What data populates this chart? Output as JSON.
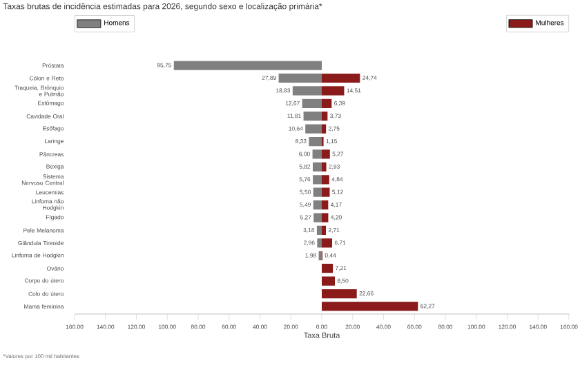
{
  "chart_data": [
    {
      "type": "bar",
      "orientation": "horizontal",
      "title": "Taxas brutas de incidência estimadas para 2026, segundo sexo e localização primária*",
      "annotations": [
        "*Valores por 100 mil habitantes"
      ],
      "categories": [
        "Próstata",
        "Cólon e Reto",
        "Traqueia, Brônquio e Pulmão",
        "Estômago",
        "Cavidade Oral",
        "Esôfago",
        "Laringe",
        "Pâncreas",
        "Bexiga",
        "Sistema Nervoso Central",
        "Leucemias",
        "Linfoma não Hodgkin",
        "Fígado",
        "Pele Melanoma",
        "Glândula Tireoide",
        "Linfoma de Hodgkin",
        "Ovário",
        "Corpo do útero",
        "Colo do útero",
        "Mama feminina"
      ],
      "series": [
        {
          "name": "Homens",
          "color": "#808080",
          "values": [
            95.75,
            27.89,
            18.83,
            12.67,
            11.81,
            10.64,
            8.33,
            6.0,
            5.82,
            5.76,
            5.5,
            5.49,
            5.27,
            3.18,
            2.96,
            1.98,
            null,
            null,
            null,
            null
          ],
          "value_labels": [
            "95,75",
            "27,89",
            "18,83",
            "12,67",
            "11,81",
            "10,64",
            "8,33",
            "6,00",
            "5,82",
            "5,76",
            "5,50",
            "5,49",
            "5,27",
            "3,18",
            "2,96",
            "1,98",
            null,
            null,
            null,
            null
          ]
        }
      ],
      "xlim": [
        160,
        0
      ],
      "xticks": [
        {
          "value": 160,
          "label": "160.00"
        },
        {
          "value": 140,
          "label": "140.00"
        },
        {
          "value": 120,
          "label": "120.00"
        },
        {
          "value": 100,
          "label": "100.00"
        },
        {
          "value": 80,
          "label": "80.00"
        },
        {
          "value": 60,
          "label": "60.00"
        },
        {
          "value": 40,
          "label": "40.00"
        },
        {
          "value": 20,
          "label": "20.00"
        }
      ],
      "legend": "top left"
    },
    {
      "type": "bar",
      "orientation": "horizontal",
      "xlabel": "Taxa Bruta",
      "categories": [
        null,
        null,
        null,
        null,
        null,
        null,
        null,
        null,
        null,
        null,
        null,
        null,
        null,
        null,
        null,
        null,
        null,
        null,
        null,
        null
      ],
      "series": [
        {
          "name": "Mulheres",
          "color": "#8b1a1a",
          "values": [
            null,
            24.74,
            14.51,
            6.39,
            3.73,
            2.75,
            1.15,
            5.27,
            2.93,
            4.84,
            5.12,
            4.17,
            4.2,
            2.71,
            6.71,
            0.44,
            7.21,
            8.5,
            22.66,
            62.27
          ],
          "value_labels": [
            null,
            "24,74",
            "14,51",
            "6,39",
            "3,73",
            "2,75",
            "1,15",
            "5,27",
            "2,93",
            "4,84",
            "5,12",
            "4,17",
            "4,20",
            "2,71",
            "6,71",
            "0,44",
            "7,21",
            "8,50",
            "22,66",
            "62,27"
          ]
        }
      ],
      "xlim": [
        0,
        160
      ],
      "xticks": [
        {
          "value": 0,
          "label": "0.00"
        },
        {
          "value": 20,
          "label": "20.00"
        },
        {
          "value": 40,
          "label": "40.00"
        },
        {
          "value": 60,
          "label": "60.00"
        },
        {
          "value": 80,
          "label": "80.00"
        },
        {
          "value": 100,
          "label": "100.00"
        },
        {
          "value": 120,
          "label": "120.00"
        },
        {
          "value": 140,
          "label": "140.00"
        },
        {
          "value": 160,
          "label": "160.00"
        }
      ],
      "tick_labels": "x",
      "legend": "top right"
    }
  ]
}
